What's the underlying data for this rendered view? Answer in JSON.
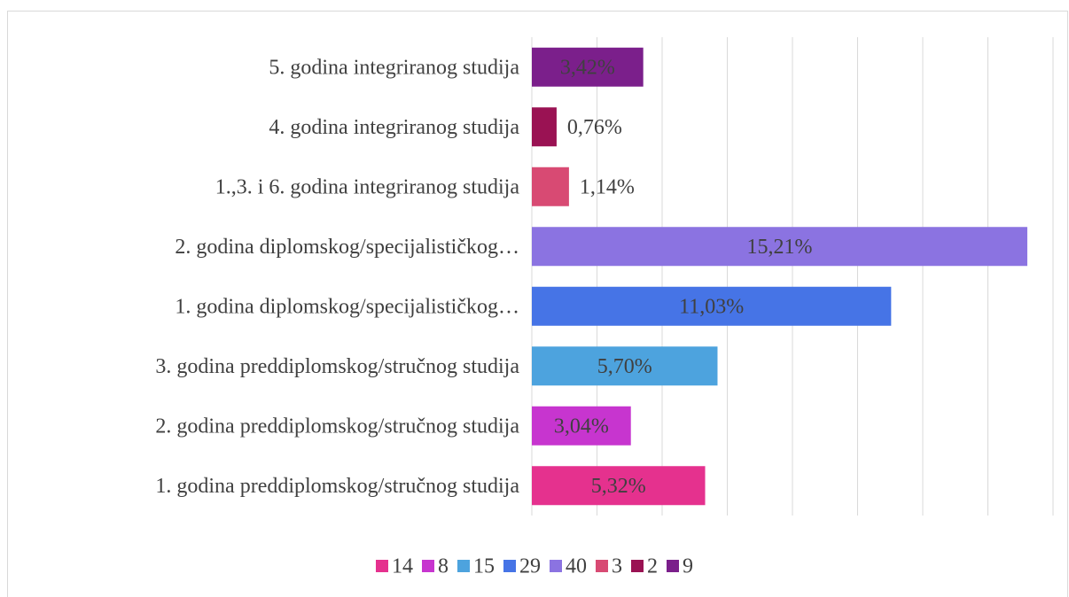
{
  "chart_data": {
    "type": "barh",
    "categories": [
      "1. godina preddiplomskog/stručnog studija",
      "2. godina preddiplomskog/stručnog studija",
      "3. godina preddiplomskog/stručnog studija",
      "1. godina diplomskog/specijalističkog…",
      "2. godina diplomskog/specijalističkog…",
      "1.,3. i 6. godina integriranog studija",
      "4. godina integriranog studija",
      "5. godina integriranog studija"
    ],
    "values": [
      5.32,
      3.04,
      5.7,
      11.03,
      15.21,
      1.14,
      0.76,
      3.42
    ],
    "value_labels": [
      "5,32%",
      "3,04%",
      "5,70%",
      "11,03%",
      "15,21%",
      "1,14%",
      "0,76%",
      "3,42%"
    ],
    "colors": [
      "#e5318e",
      "#c735cf",
      "#4da3de",
      "#4674e6",
      "#8b73e1",
      "#d84a73",
      "#9a1253",
      "#7b1f8b"
    ],
    "legend": [
      14,
      8,
      15,
      29,
      40,
      3,
      2,
      9
    ],
    "xlim": [
      0,
      16
    ],
    "xticks": [
      0,
      2,
      4,
      6,
      8,
      10,
      12,
      14,
      16
    ],
    "grid": true
  }
}
